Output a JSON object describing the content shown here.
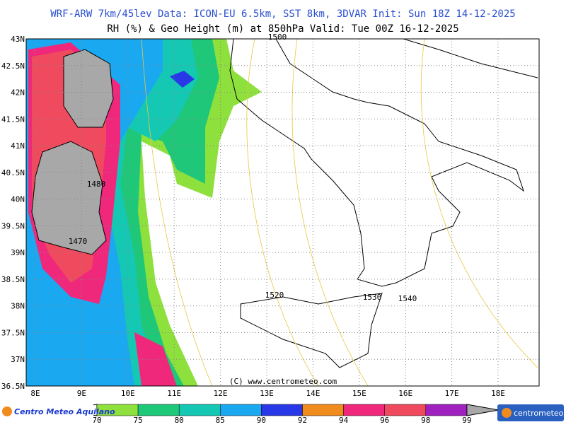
{
  "header": {
    "line1": "WRF-ARW 7km/45lev   Data: ICON-EU 6.5km, SST 8km, 3DVAR   Init: Sun 18Z 14-12-2025",
    "line2": "RH (%) & Geo Height (m) at 850hPa   Valid: Tue 00Z 16-12-2025"
  },
  "map": {
    "lat_ticks": [
      {
        "value": 43,
        "label": "43N"
      },
      {
        "value": 42.5,
        "label": "42.5N"
      },
      {
        "value": 42,
        "label": "42N"
      },
      {
        "value": 41.5,
        "label": "41.5N"
      },
      {
        "value": 41,
        "label": "41N"
      },
      {
        "value": 40.5,
        "label": "40.5N"
      },
      {
        "value": 40,
        "label": "40N"
      },
      {
        "value": 39.5,
        "label": "39.5N"
      },
      {
        "value": 39,
        "label": "39N"
      },
      {
        "value": 38.5,
        "label": "38.5N"
      },
      {
        "value": 38,
        "label": "38N"
      },
      {
        "value": 37.5,
        "label": "37.5N"
      },
      {
        "value": 37,
        "label": "37N"
      },
      {
        "value": 36.5,
        "label": "36.5N"
      }
    ],
    "lon_ticks": [
      {
        "value": 8,
        "label": "8E"
      },
      {
        "value": 9,
        "label": "9E"
      },
      {
        "value": 10,
        "label": "10E"
      },
      {
        "value": 11,
        "label": "11E"
      },
      {
        "value": 12,
        "label": "12E"
      },
      {
        "value": 13,
        "label": "13E"
      },
      {
        "value": 14,
        "label": "14E"
      },
      {
        "value": 15,
        "label": "15E"
      },
      {
        "value": 16,
        "label": "16E"
      },
      {
        "value": 17,
        "label": "17E"
      },
      {
        "value": 18,
        "label": "18E"
      }
    ],
    "contour_labels": [
      1480,
      1470,
      1520,
      1530,
      1540,
      1500
    ],
    "copyright": "(C) www.centrometeo.com"
  },
  "colorbar": {
    "ticks": [
      70,
      75,
      80,
      85,
      90,
      92,
      94,
      96,
      98,
      99
    ],
    "colors": [
      "#8ee03c",
      "#1ec878",
      "#14c8b4",
      "#1aa8f0",
      "#2838e6",
      "#f08c1e",
      "#f0287c",
      "#f04a5e",
      "#a020c0"
    ],
    "over_color": "#a8a8a8"
  },
  "logos": {
    "left": "Centro Meteo Aquilano",
    "right": "centrometeo"
  }
}
